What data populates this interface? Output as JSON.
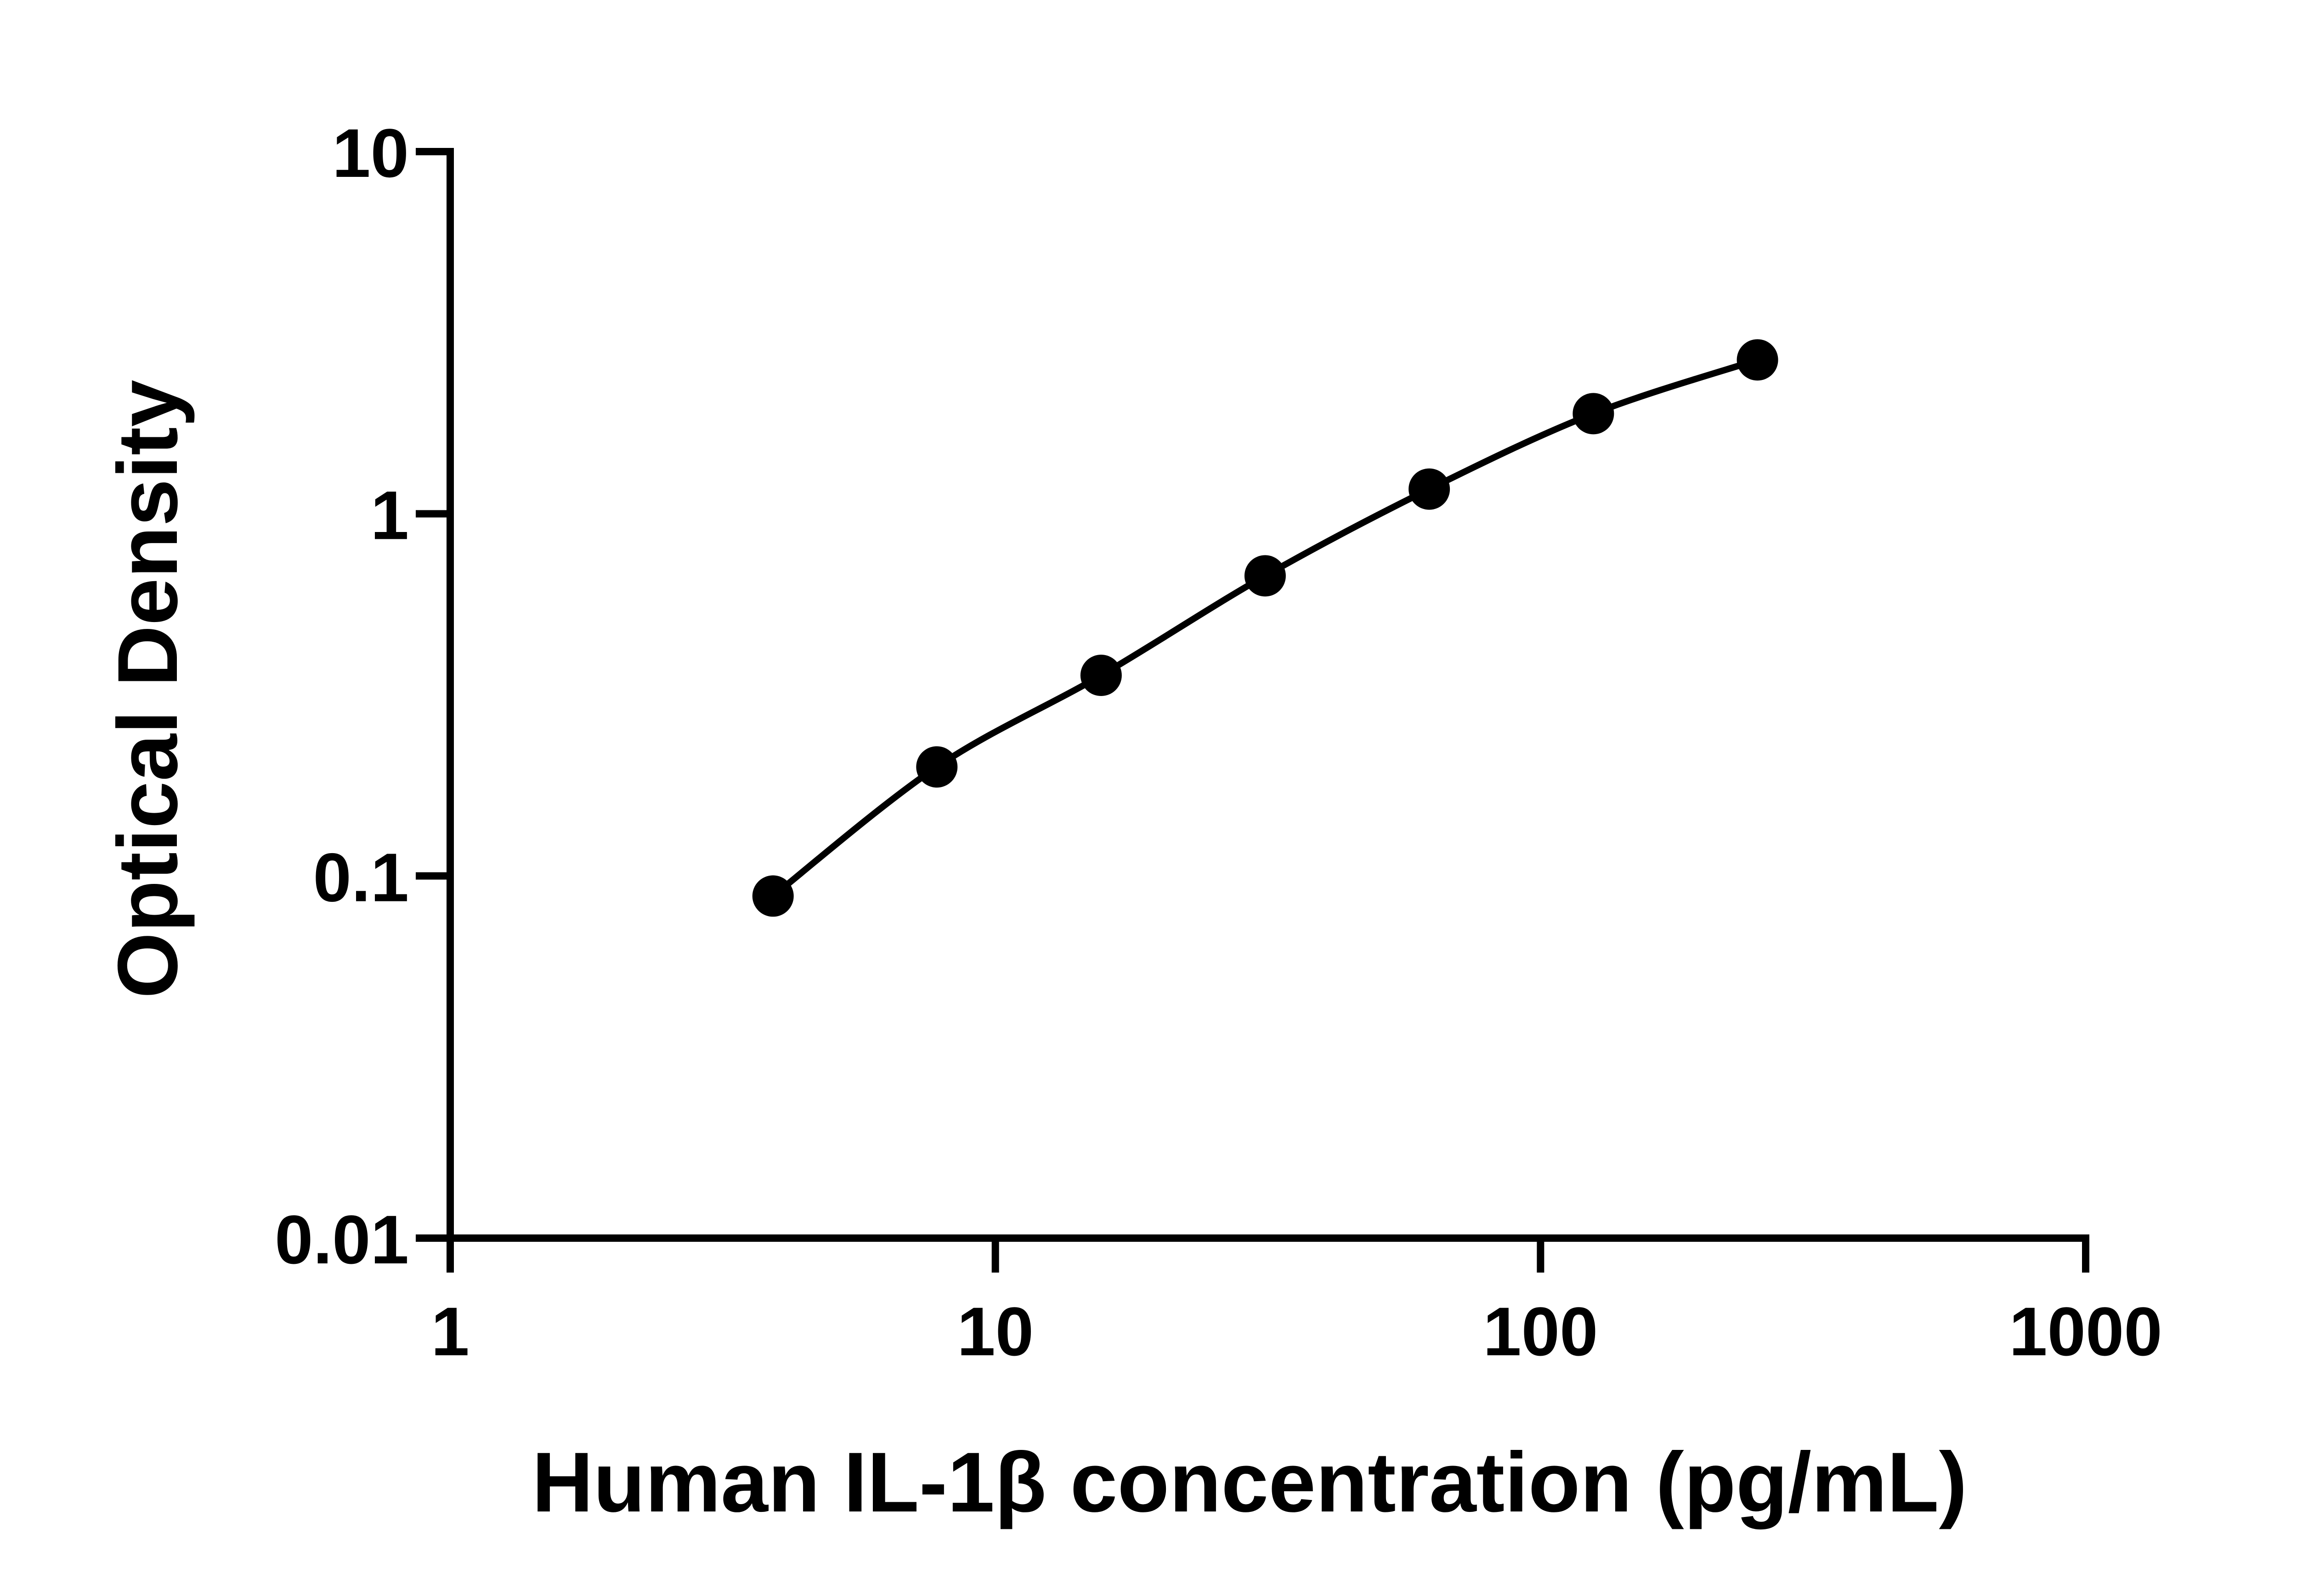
{
  "chart_data": {
    "type": "scatter",
    "title": "",
    "xlabel": "Human IL-1β concentration (pg/mL)",
    "ylabel": "Optical Density",
    "x_scale": "log",
    "y_scale": "log",
    "xlim": [
      1,
      1000
    ],
    "ylim": [
      0.01,
      10
    ],
    "x_ticks": [
      1,
      10,
      100,
      1000
    ],
    "x_tick_labels": [
      "1",
      "10",
      "100",
      "1000"
    ],
    "y_ticks": [
      0.01,
      0.1,
      1,
      10
    ],
    "y_tick_labels": [
      "0.01",
      "0.1",
      "1",
      "10"
    ],
    "grid": false,
    "colors": {
      "line": "#000000",
      "points": "#000000"
    },
    "series": [
      {
        "x": [
          3.91,
          7.81,
          15.63,
          31.25,
          62.5,
          125,
          250
        ],
        "y": [
          0.088,
          0.2,
          0.358,
          0.674,
          1.17,
          1.89,
          2.66
        ],
        "fit_curve": true
      }
    ]
  }
}
